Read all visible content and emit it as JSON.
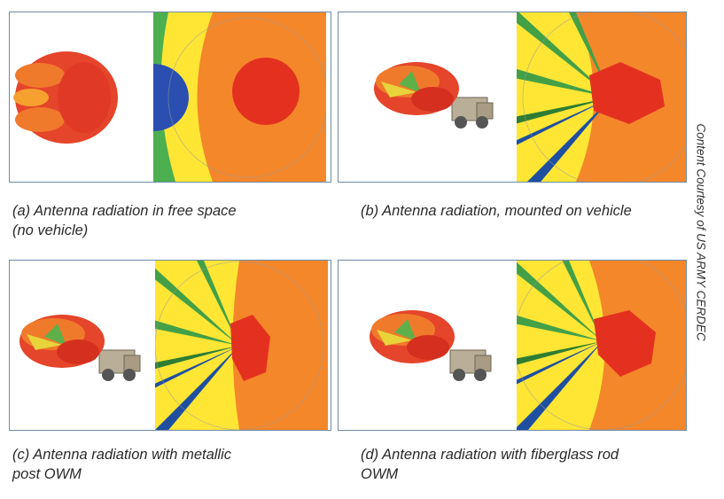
{
  "panels": [
    {
      "caption": [
        "(a) Antenna radiation in free space",
        "(no vehicle)"
      ]
    },
    {
      "caption": [
        "(b) Antenna radiation, mounted on vehicle"
      ]
    },
    {
      "caption": [
        "(c) Antenna radiation with metallic",
        "post OWM"
      ]
    },
    {
      "caption": [
        "(d) Antenna radiation with fiberglass rod",
        "OWM"
      ]
    }
  ],
  "credit": "Content Courtesy of US ARMY CERDEC"
}
